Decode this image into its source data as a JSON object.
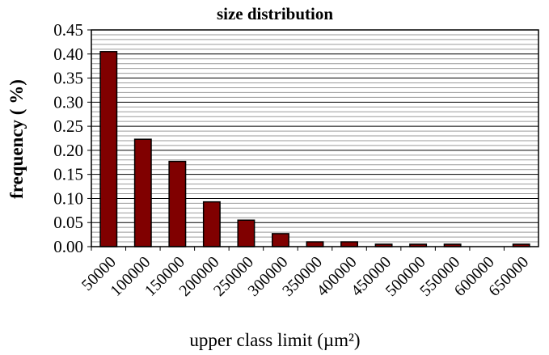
{
  "chart_data": {
    "type": "bar",
    "title": "size distribution",
    "x_label": "upper class limit (µm²)",
    "y_label": "frequency ( %)",
    "categories": [
      "50000",
      "100000",
      "150000",
      "200000",
      "250000",
      "300000",
      "350000",
      "400000",
      "450000",
      "500000",
      "550000",
      "600000",
      "650000"
    ],
    "values": [
      0.405,
      0.223,
      0.177,
      0.093,
      0.055,
      0.027,
      0.01,
      0.01,
      0.005,
      0.005,
      0.005,
      0,
      0.005
    ],
    "color": "#800000",
    "ylim": [
      0,
      0.45
    ],
    "yticks": [
      {
        "value": 0,
        "label": "0.00"
      },
      {
        "value": 0.05,
        "label": "0.05"
      },
      {
        "value": 0.1,
        "label": "0.10"
      },
      {
        "value": 0.15,
        "label": "0.15"
      },
      {
        "value": 0.2,
        "label": "0.20"
      },
      {
        "value": 0.25,
        "label": "0.25"
      },
      {
        "value": 0.3,
        "label": "0.30"
      },
      {
        "value": 0.35,
        "label": "0.35"
      },
      {
        "value": 0.4,
        "label": "0.40"
      },
      {
        "value": 0.45,
        "label": "0.45"
      }
    ],
    "grid": true,
    "minor_grid": true
  }
}
